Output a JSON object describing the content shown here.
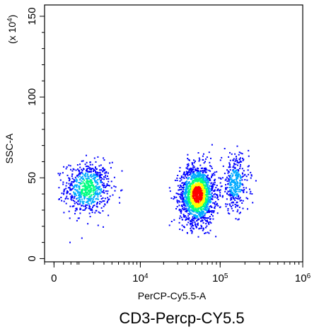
{
  "chart_data": {
    "type": "scatter",
    "subtype": "flow-cytometry-density-dot-plot",
    "caption": "CD3-Percp-CY5.5",
    "xlabel": "PerCP-Cy5.5-A",
    "ylabel": "SSC-A",
    "y_scale_label": "(x 10^4)",
    "x_scale": "biexponential",
    "y_scale": "linear",
    "xlim": [
      -300,
      1000000
    ],
    "ylim": [
      -2,
      157
    ],
    "x_ticks": [
      {
        "value": 0,
        "base": "0",
        "exp": ""
      },
      {
        "value": 10000,
        "base": "10",
        "exp": "4"
      },
      {
        "value": 100000,
        "base": "10",
        "exp": "5"
      },
      {
        "value": 1000000,
        "base": "10",
        "exp": "6"
      }
    ],
    "y_ticks": [
      {
        "value": 0,
        "label": "0"
      },
      {
        "value": 50,
        "label": "50"
      },
      {
        "value": 100,
        "label": "100"
      },
      {
        "value": 150,
        "label": "150"
      }
    ],
    "color_scale": [
      "#0000ff",
      "#00aaff",
      "#00ff80",
      "#ffff00",
      "#ff0000"
    ],
    "populations": [
      {
        "x_center": 1500,
        "x_spread": 1300,
        "y_center": 44,
        "y_spread": 8,
        "count": 700,
        "peak_density": 0.55
      },
      {
        "x_center": 52000,
        "x_spread": 22000,
        "y_center": 40,
        "y_spread": 9,
        "count": 1700,
        "peak_density": 1.0
      },
      {
        "x_center": 150000,
        "x_spread": 50000,
        "y_center": 47,
        "y_spread": 9,
        "count": 350,
        "peak_density": 0.35
      }
    ]
  }
}
